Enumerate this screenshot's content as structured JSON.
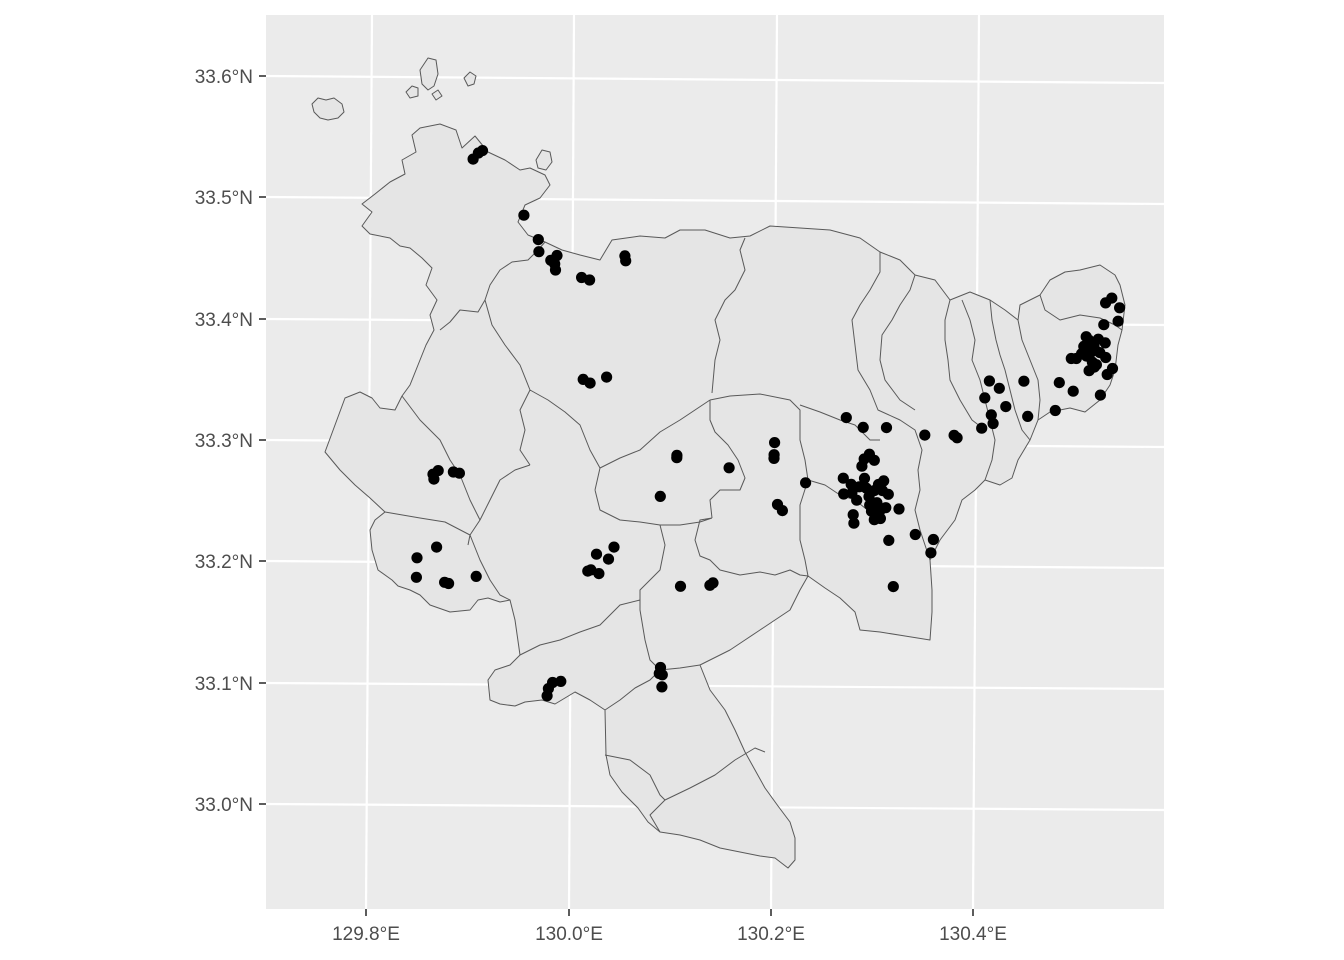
{
  "chart_data": {
    "type": "scatter",
    "title": "",
    "xlabel": "",
    "ylabel": "",
    "xlim": [
      129.705,
      130.585
    ],
    "ylim": [
      32.915,
      33.655
    ],
    "x_ticks": [
      {
        "value": 129.8,
        "label": "129.8°E"
      },
      {
        "value": 130.0,
        "label": "130.0°E"
      },
      {
        "value": 130.2,
        "label": "130.2°E"
      },
      {
        "value": 130.4,
        "label": "130.4°E"
      }
    ],
    "y_ticks": [
      {
        "value": 33.0,
        "label": "33.0°N"
      },
      {
        "value": 33.1,
        "label": "33.1°N"
      },
      {
        "value": 33.2,
        "label": "33.2°N"
      },
      {
        "value": 33.3,
        "label": "33.3°N"
      },
      {
        "value": 33.4,
        "label": "33.4°N"
      },
      {
        "value": 33.5,
        "label": "33.5°N"
      },
      {
        "value": 33.6,
        "label": "33.6°N"
      }
    ],
    "grid": true,
    "legend": "none",
    "colors": {
      "panel": "#ebebeb",
      "land": "#e5e5e5",
      "border": "#595959",
      "points": "#000000",
      "grid": "#ffffff"
    },
    "points": [
      [
        129.893,
        33.531
      ],
      [
        129.898,
        33.536
      ],
      [
        129.902,
        33.538
      ],
      [
        129.945,
        33.485
      ],
      [
        129.96,
        33.465
      ],
      [
        129.961,
        33.455
      ],
      [
        129.973,
        33.448
      ],
      [
        129.977,
        33.445
      ],
      [
        129.978,
        33.44
      ],
      [
        129.979,
        33.452
      ],
      [
        130.004,
        33.434
      ],
      [
        130.012,
        33.432
      ],
      [
        130.046,
        33.452
      ],
      [
        130.047,
        33.448
      ],
      [
        130.009,
        33.35
      ],
      [
        130.016,
        33.347
      ],
      [
        130.032,
        33.352
      ],
      [
        129.864,
        33.271
      ],
      [
        129.865,
        33.267
      ],
      [
        129.869,
        33.274
      ],
      [
        129.884,
        33.273
      ],
      [
        129.89,
        33.272
      ],
      [
        129.851,
        33.202
      ],
      [
        129.851,
        33.186
      ],
      [
        129.87,
        33.211
      ],
      [
        129.879,
        33.182
      ],
      [
        129.883,
        33.181
      ],
      [
        129.91,
        33.187
      ],
      [
        130.02,
        33.192
      ],
      [
        130.023,
        33.193
      ],
      [
        130.028,
        33.206
      ],
      [
        130.031,
        33.19
      ],
      [
        130.04,
        33.202
      ],
      [
        130.045,
        33.212
      ],
      [
        130.089,
        33.254
      ],
      [
        130.104,
        33.288
      ],
      [
        130.104,
        33.286
      ],
      [
        130.156,
        33.278
      ],
      [
        130.112,
        33.18
      ],
      [
        130.141,
        33.181
      ],
      [
        130.144,
        33.183
      ],
      [
        129.984,
        33.089
      ],
      [
        129.985,
        33.095
      ],
      [
        129.989,
        33.1
      ],
      [
        129.997,
        33.101
      ],
      [
        130.095,
        33.113
      ],
      [
        130.094,
        33.108
      ],
      [
        130.097,
        33.107
      ],
      [
        130.097,
        33.097
      ],
      [
        130.2,
        33.299
      ],
      [
        130.2,
        33.289
      ],
      [
        130.2,
        33.286
      ],
      [
        130.205,
        33.248
      ],
      [
        130.21,
        33.243
      ],
      [
        130.232,
        33.266
      ],
      [
        130.27,
        33.32
      ],
      [
        130.269,
        33.27
      ],
      [
        130.27,
        33.257
      ],
      [
        130.277,
        33.265
      ],
      [
        130.278,
        33.258
      ],
      [
        130.28,
        33.24
      ],
      [
        130.281,
        33.233
      ],
      [
        130.283,
        33.252
      ],
      [
        130.285,
        33.263
      ],
      [
        130.287,
        33.312
      ],
      [
        130.287,
        33.28
      ],
      [
        130.289,
        33.286
      ],
      [
        130.29,
        33.27
      ],
      [
        130.292,
        33.262
      ],
      [
        130.294,
        33.29
      ],
      [
        130.295,
        33.255
      ],
      [
        130.296,
        33.248
      ],
      [
        130.298,
        33.243
      ],
      [
        130.299,
        33.285
      ],
      [
        130.3,
        33.26
      ],
      [
        130.301,
        33.236
      ],
      [
        130.303,
        33.25
      ],
      [
        130.304,
        33.265
      ],
      [
        130.306,
        33.243
      ],
      [
        130.307,
        33.237
      ],
      [
        130.308,
        33.26
      ],
      [
        130.309,
        33.268
      ],
      [
        130.31,
        33.312
      ],
      [
        130.312,
        33.246
      ],
      [
        130.314,
        33.257
      ],
      [
        130.316,
        33.219
      ],
      [
        130.322,
        33.181
      ],
      [
        130.325,
        33.245
      ],
      [
        130.342,
        33.224
      ],
      [
        130.348,
        33.306
      ],
      [
        130.358,
        33.209
      ],
      [
        130.36,
        33.22
      ],
      [
        130.377,
        33.306
      ],
      [
        130.38,
        33.304
      ],
      [
        130.404,
        33.312
      ],
      [
        130.406,
        33.337
      ],
      [
        130.41,
        33.351
      ],
      [
        130.413,
        33.323
      ],
      [
        130.415,
        33.316
      ],
      [
        130.42,
        33.345
      ],
      [
        130.427,
        33.33
      ],
      [
        130.444,
        33.351
      ],
      [
        130.449,
        33.322
      ],
      [
        130.476,
        33.327
      ],
      [
        130.479,
        33.35
      ],
      [
        130.49,
        33.37
      ],
      [
        130.493,
        33.343
      ],
      [
        130.495,
        33.37
      ],
      [
        130.5,
        33.374
      ],
      [
        130.502,
        33.38
      ],
      [
        130.504,
        33.388
      ],
      [
        130.505,
        33.372
      ],
      [
        130.507,
        33.385
      ],
      [
        130.508,
        33.36
      ],
      [
        130.509,
        33.375
      ],
      [
        130.511,
        33.367
      ],
      [
        130.512,
        33.38
      ],
      [
        130.513,
        33.363
      ],
      [
        130.515,
        33.365
      ],
      [
        130.516,
        33.386
      ],
      [
        130.518,
        33.375
      ],
      [
        130.52,
        33.34
      ],
      [
        130.521,
        33.398
      ],
      [
        130.522,
        33.416
      ],
      [
        130.523,
        33.383
      ],
      [
        130.524,
        33.371
      ],
      [
        130.526,
        33.357
      ],
      [
        130.528,
        33.42
      ],
      [
        130.531,
        33.362
      ],
      [
        130.535,
        33.401
      ],
      [
        130.536,
        33.412
      ]
    ]
  }
}
